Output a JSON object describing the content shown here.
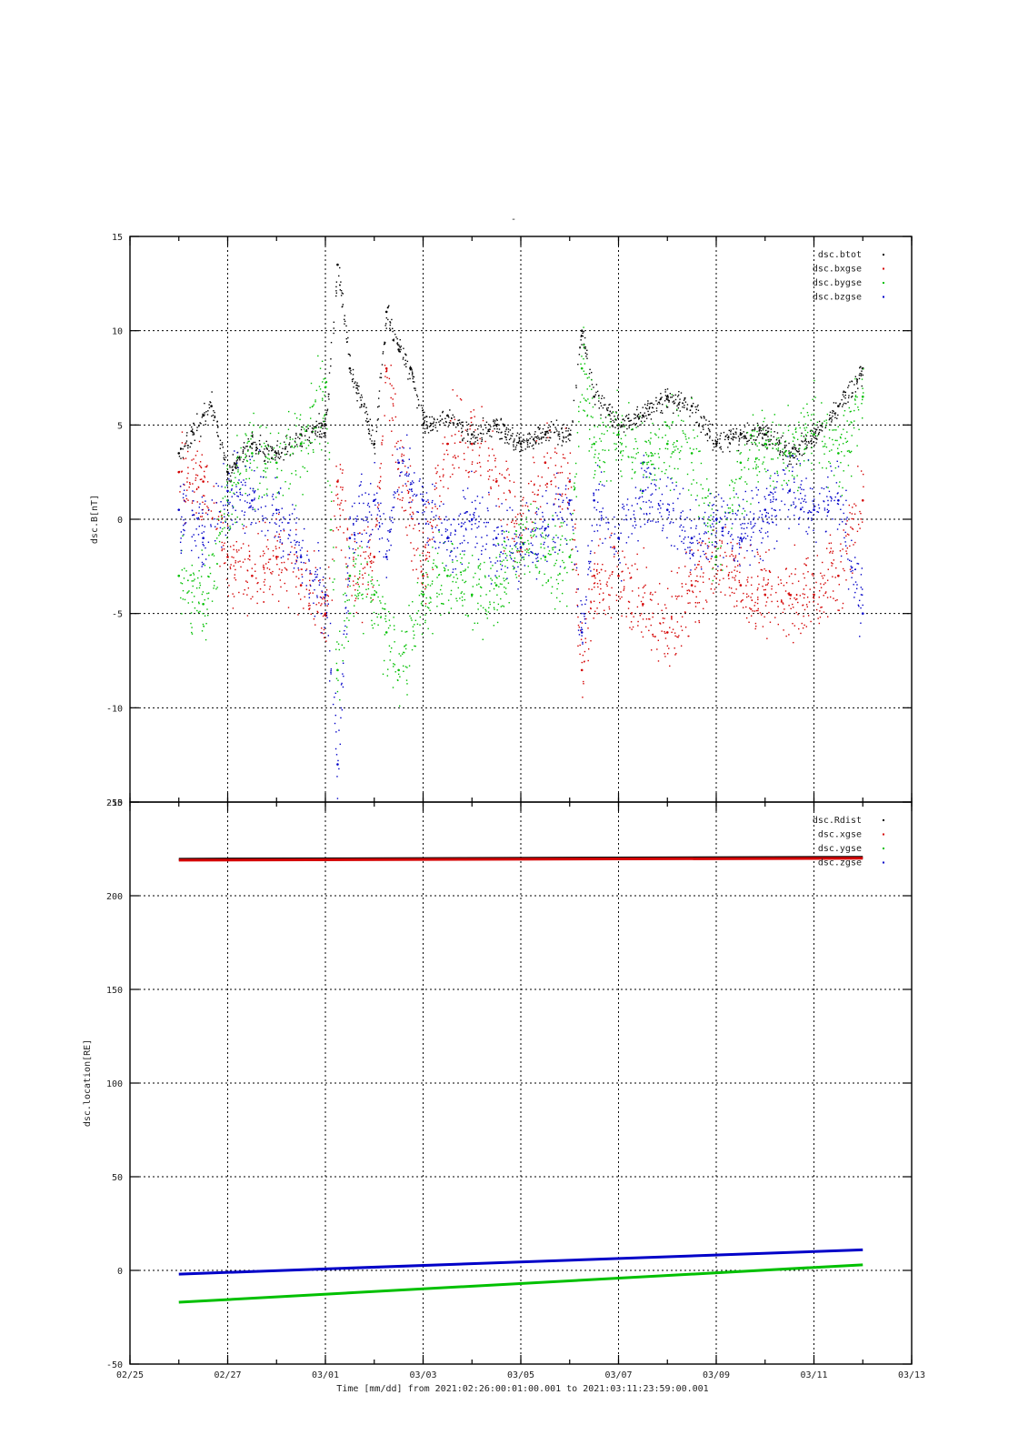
{
  "title": "-",
  "chart_data": [
    {
      "type": "scatter",
      "ylabel": "dsc.B[nT]",
      "ylim": [
        -15,
        15
      ],
      "yticks": [
        -15,
        -10,
        -5,
        0,
        5,
        10,
        15
      ],
      "xlim": [
        "02/25",
        "03/13"
      ],
      "grid": true,
      "legend_position": "top-right",
      "series": [
        {
          "name": "dsc.btot",
          "color": "#000000",
          "x": [
            "02/26",
            "02/26 12:00",
            "02/26 16:00",
            "02/27",
            "02/27 12:00",
            "02/28",
            "02/28 12:00",
            "03/01",
            "03/01 06:00",
            "03/01 12:00",
            "03/02",
            "03/02 06:00",
            "03/02 12:00",
            "03/02 18:00",
            "03/03",
            "03/03 12:00",
            "03/04",
            "03/04 12:00",
            "03/05",
            "03/05 12:00",
            "03/06",
            "03/06 06:00",
            "03/06 12:00",
            "03/07",
            "03/07 12:00",
            "03/08",
            "03/08 12:00",
            "03/09",
            "03/09 12:00",
            "03/10",
            "03/10 12:00",
            "03/11",
            "03/11 12:00",
            "03/12"
          ],
          "y": [
            3.5,
            5.5,
            6.0,
            2.5,
            4.0,
            3.5,
            4.5,
            5.0,
            13.5,
            8.0,
            4.0,
            11.0,
            9.0,
            8.0,
            5.0,
            5.5,
            4.5,
            5.0,
            4.0,
            4.5,
            4.5,
            10.0,
            6.5,
            5.0,
            5.5,
            6.5,
            6.0,
            4.0,
            4.5,
            4.5,
            3.5,
            4.5,
            6.0,
            8.0
          ]
        },
        {
          "name": "dsc.bxgse",
          "color": "#d40000",
          "x": [
            "02/26",
            "02/26 12:00",
            "02/27",
            "02/27 12:00",
            "02/28",
            "02/28 12:00",
            "03/01",
            "03/01 06:00",
            "03/01 12:00",
            "03/02",
            "03/02 06:00",
            "03/02 12:00",
            "03/03",
            "03/03 12:00",
            "03/04",
            "03/04 12:00",
            "03/05",
            "03/05 12:00",
            "03/06",
            "03/06 06:00",
            "03/06 12:00",
            "03/07",
            "03/07 12:00",
            "03/08",
            "03/08 12:00",
            "03/09",
            "03/09 12:00",
            "03/10",
            "03/10 12:00",
            "03/11",
            "03/11 12:00",
            "03/12"
          ],
          "y": [
            2.5,
            2.0,
            -2.0,
            -3.0,
            -2.0,
            -3.5,
            -5.0,
            2.0,
            -3.0,
            -2.0,
            8.0,
            3.0,
            -3.0,
            4.0,
            4.0,
            2.0,
            -1.0,
            3.0,
            2.0,
            -8.0,
            -3.0,
            -3.0,
            -4.5,
            -6.0,
            -3.5,
            -2.0,
            -3.5,
            -4.0,
            -4.0,
            -4.0,
            -3.0,
            1.0
          ]
        },
        {
          "name": "dsc.bygse",
          "color": "#00c000",
          "x": [
            "02/26",
            "02/26 12:00",
            "02/27",
            "02/27 12:00",
            "02/28",
            "02/28 12:00",
            "03/01",
            "03/01 06:00",
            "03/01 12:00",
            "03/02",
            "03/02 06:00",
            "03/02 12:00",
            "03/03",
            "03/03 12:00",
            "03/04",
            "03/04 12:00",
            "03/05",
            "03/05 12:00",
            "03/06",
            "03/06 06:00",
            "03/06 12:00",
            "03/07",
            "03/07 12:00",
            "03/08",
            "03/08 12:00",
            "03/09",
            "03/09 12:00",
            "03/10",
            "03/10 12:00",
            "03/11",
            "03/11 12:00",
            "03/12"
          ],
          "y": [
            -3.0,
            -4.5,
            1.0,
            3.5,
            3.0,
            4.0,
            7.0,
            -8.0,
            -3.0,
            -4.0,
            -6.0,
            -8.0,
            -4.0,
            -3.0,
            -4.0,
            -3.5,
            -1.0,
            -2.0,
            -2.0,
            8.0,
            4.0,
            4.5,
            3.0,
            4.0,
            3.5,
            -2.0,
            3.0,
            4.0,
            3.5,
            4.5,
            3.5,
            6.5
          ]
        },
        {
          "name": "dsc.bzgse",
          "color": "#0000c8",
          "x": [
            "02/26",
            "02/26 12:00",
            "02/27",
            "02/27 12:00",
            "02/28",
            "02/28 12:00",
            "03/01",
            "03/01 06:00",
            "03/01 12:00",
            "03/02",
            "03/02 06:00",
            "03/02 12:00",
            "03/03",
            "03/03 12:00",
            "03/04",
            "03/04 12:00",
            "03/05",
            "03/05 12:00",
            "03/06",
            "03/06 06:00",
            "03/06 12:00",
            "03/07",
            "03/07 12:00",
            "03/08",
            "03/08 12:00",
            "03/09",
            "03/09 12:00",
            "03/10",
            "03/10 12:00",
            "03/11",
            "03/11 12:00",
            "03/12"
          ],
          "y": [
            0.5,
            -1.0,
            1.5,
            1.0,
            0.5,
            -2.0,
            -4.0,
            -13.0,
            -1.0,
            1.0,
            -2.0,
            3.0,
            1.0,
            -1.0,
            0.0,
            -1.0,
            -1.5,
            -0.5,
            1.0,
            -6.0,
            1.0,
            -1.0,
            1.5,
            0.5,
            -1.0,
            0.0,
            -1.0,
            0.5,
            1.5,
            0.5,
            1.0,
            -5.0
          ]
        }
      ]
    },
    {
      "type": "line",
      "ylabel": "dsc.location[RE]",
      "xlabel": "Time [mm/dd]  from 2021:02:26:00:01:00.001  to  2021:03:11:23:59:00.001",
      "ylim": [
        -50,
        250
      ],
      "yticks": [
        -50,
        0,
        50,
        100,
        150,
        200,
        250
      ],
      "xlim": [
        "02/25",
        "03/13"
      ],
      "xticks": [
        "02/25",
        "02/27",
        "03/01",
        "03/03",
        "03/05",
        "03/07",
        "03/09",
        "03/11",
        "03/13"
      ],
      "grid": true,
      "legend_position": "top-right",
      "series": [
        {
          "name": "dsc.Rdist",
          "color": "#000000",
          "x": [
            "02/26",
            "03/12"
          ],
          "y": [
            219.5,
            220.5
          ]
        },
        {
          "name": "dsc.xgse",
          "color": "#d40000",
          "x": [
            "02/26",
            "03/12"
          ],
          "y": [
            219.0,
            220.0
          ]
        },
        {
          "name": "dsc.ygse",
          "color": "#00c000",
          "x": [
            "02/26",
            "03/12"
          ],
          "y": [
            -17.0,
            3.0
          ]
        },
        {
          "name": "dsc.zgse",
          "color": "#0000c8",
          "x": [
            "02/26",
            "03/12"
          ],
          "y": [
            -2.0,
            11.0
          ]
        }
      ]
    }
  ]
}
